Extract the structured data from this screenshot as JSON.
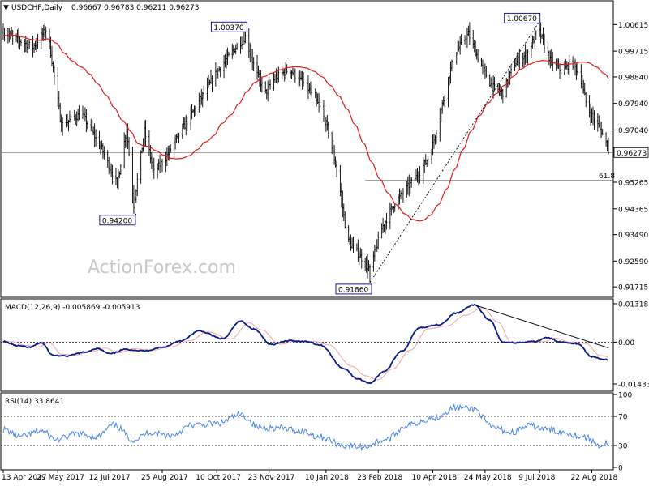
{
  "chart_data": [
    {
      "type": "candlestick",
      "header": {
        "arrow": "▼",
        "symbol": "USDCHF,Daily",
        "ohlc": "0.96667 0.96783 0.96211 0.96273"
      },
      "ylim": [
        0.915,
        1.009
      ],
      "y_ticks": [
        1.00615,
        0.99715,
        0.9884,
        0.9794,
        0.9704,
        0.96273,
        0.95265,
        0.94365,
        0.9349,
        0.9259,
        0.91715
      ],
      "y_tick_labels": [
        "1.00615",
        "0.99715",
        "0.98840",
        "0.97940",
        "0.97040",
        "0.96273",
        "0.95265",
        "0.94365",
        "0.93490",
        "0.92590",
        "0.91715"
      ],
      "current_price": 0.96273,
      "current_price_label": "0.96273",
      "fib_level": {
        "value": 0.9532,
        "label": "61.8"
      },
      "watermark": "ActionForex.com",
      "annotations": [
        {
          "label": "0.94200",
          "value": 0.942,
          "date": "2017-08-01"
        },
        {
          "label": "1.00370",
          "value": 1.0037,
          "date": "2017-11-03"
        },
        {
          "label": "0.91860",
          "value": 0.9186,
          "date": "2018-02-16"
        },
        {
          "label": "1.00670",
          "value": 1.0067,
          "date": "2018-07-08"
        }
      ],
      "trendline": {
        "from": {
          "date": "2018-02-16",
          "value": 0.9186
        },
        "to": {
          "date": "2018-07-08",
          "value": 1.0067
        }
      },
      "ohlc": [],
      "moving_average": []
    },
    {
      "type": "line",
      "title": "MACD(12,26,9) -0.005869 -0.005913",
      "ylim": [
        -0.016,
        0.014
      ],
      "y_ticks": [
        0.013184,
        0.0,
        -0.014339
      ],
      "y_tick_labels": [
        "0.013184",
        "0.00",
        "-0.014339"
      ],
      "macd_knots": [
        [
          "2017-04-13",
          0.0002
        ],
        [
          "2017-04-25",
          -0.0012
        ],
        [
          "2017-05-05",
          -0.0018
        ],
        [
          "2017-05-15",
          -0.0002
        ],
        [
          "2017-05-25",
          -0.0045
        ],
        [
          "2017-06-05",
          -0.0048
        ],
        [
          "2017-06-20",
          -0.0035
        ],
        [
          "2017-07-01",
          -0.0022
        ],
        [
          "2017-07-12",
          -0.004
        ],
        [
          "2017-07-25",
          -0.0025
        ],
        [
          "2017-08-10",
          -0.003
        ],
        [
          "2017-08-25",
          -0.0018
        ],
        [
          "2017-09-10",
          0.0005
        ],
        [
          "2017-09-25",
          0.0038
        ],
        [
          "2017-10-15",
          0.0012
        ],
        [
          "2017-10-30",
          0.0072
        ],
        [
          "2017-11-10",
          0.0045
        ],
        [
          "2017-11-25",
          -0.0008
        ],
        [
          "2017-12-10",
          0.0005
        ],
        [
          "2017-12-25",
          0.0002
        ],
        [
          "2018-01-05",
          -0.001
        ],
        [
          "2018-01-25",
          -0.009
        ],
        [
          "2018-02-05",
          -0.0125
        ],
        [
          "2018-02-16",
          -0.014
        ],
        [
          "2018-02-28",
          -0.01
        ],
        [
          "2018-03-15",
          -0.003
        ],
        [
          "2018-03-30",
          0.005
        ],
        [
          "2018-04-15",
          0.006
        ],
        [
          "2018-04-30",
          0.01
        ],
        [
          "2018-05-15",
          0.0128
        ],
        [
          "2018-05-28",
          0.0075
        ],
        [
          "2018-06-08",
          0.0
        ],
        [
          "2018-06-20",
          -0.0002
        ],
        [
          "2018-07-05",
          0.0002
        ],
        [
          "2018-07-15",
          0.0015
        ],
        [
          "2018-07-28",
          0.0
        ],
        [
          "2018-08-10",
          -0.0005
        ],
        [
          "2018-08-22",
          -0.005
        ],
        [
          "2018-09-03",
          -0.006
        ]
      ],
      "signal_lag_days": 7,
      "trendline": {
        "from": {
          "date": "2018-05-15",
          "value": 0.0128
        },
        "to": {
          "date": "2018-09-05",
          "value": -0.002
        }
      }
    },
    {
      "type": "line",
      "title": "RSI(14) 33.8641",
      "ylim": [
        0,
        100
      ],
      "y_ticks": [
        100,
        70,
        30,
        0
      ],
      "y_tick_labels": [
        "100",
        "70",
        "30",
        "0"
      ],
      "levels": [
        70,
        30
      ],
      "rsi_knots": [
        [
          "2017-04-13",
          52
        ],
        [
          "2017-04-28",
          42
        ],
        [
          "2017-05-15",
          50
        ],
        [
          "2017-05-28",
          38
        ],
        [
          "2017-06-15",
          46
        ],
        [
          "2017-07-01",
          42
        ],
        [
          "2017-07-15",
          58
        ],
        [
          "2017-08-01",
          38
        ],
        [
          "2017-08-15",
          48
        ],
        [
          "2017-09-01",
          44
        ],
        [
          "2017-09-20",
          58
        ],
        [
          "2017-10-10",
          60
        ],
        [
          "2017-10-30",
          72
        ],
        [
          "2017-11-15",
          55
        ],
        [
          "2017-12-01",
          54
        ],
        [
          "2017-12-20",
          50
        ],
        [
          "2018-01-05",
          42
        ],
        [
          "2018-01-25",
          30
        ],
        [
          "2018-02-10",
          28
        ],
        [
          "2018-03-01",
          38
        ],
        [
          "2018-03-20",
          58
        ],
        [
          "2018-04-10",
          68
        ],
        [
          "2018-04-30",
          82
        ],
        [
          "2018-05-15",
          80
        ],
        [
          "2018-05-30",
          55
        ],
        [
          "2018-06-15",
          48
        ],
        [
          "2018-07-01",
          57
        ],
        [
          "2018-07-15",
          52
        ],
        [
          "2018-07-30",
          48
        ],
        [
          "2018-08-15",
          42
        ],
        [
          "2018-08-30",
          30
        ],
        [
          "2018-09-05",
          34
        ]
      ]
    }
  ],
  "x_axis": {
    "tick_dates": [
      "2017-04-13",
      "2017-05-29",
      "2017-07-12",
      "2017-08-25",
      "2017-10-10",
      "2017-11-23",
      "2018-01-10",
      "2018-02-23",
      "2018-04-10",
      "2018-05-24",
      "2018-07-09",
      "2018-08-22"
    ],
    "tick_labels": [
      "13 Apr 2017",
      "29 May 2017",
      "12 Jul 2017",
      "25 Aug 2017",
      "10 Oct 2017",
      "23 Nov 2017",
      "10 Jan 2018",
      "23 Feb 2018",
      "10 Apr 2018",
      "24 May 2018",
      "9 Jul 2018",
      "22 Aug 2018"
    ]
  },
  "colors": {
    "candle": "#000000",
    "moving_average": "#e31b1b",
    "macd": "#0a1a8a",
    "signal": "#f2a3a3",
    "rsi": "#4a86e8",
    "grid": "#000000",
    "annotation_border": "#000080"
  }
}
